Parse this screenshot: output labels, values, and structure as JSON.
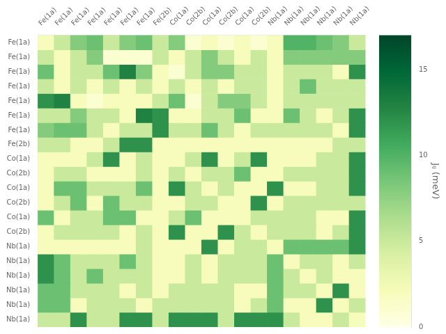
{
  "chart_data": {
    "type": "heatmap",
    "categories": [
      "Fe(1a)",
      "Fe(1a)",
      "Fe(1a)",
      "Fe(1a)",
      "Fe(1a)",
      "Fe(1a)",
      "Fe(1a)",
      "Fe(2b)",
      "Co(1a)",
      "Co(2b)",
      "Co(1a)",
      "Co(2b)",
      "Co(1a)",
      "Co(2b)",
      "Nb(1a)",
      "Nb(1a)",
      "Nb(1a)",
      "Nb(1a)",
      "Nb(1a)",
      "Nb(1a)"
    ],
    "y_categories": [
      "Fe(1a)",
      "Fe(1a)",
      "Fe(1a)",
      "Fe(1a)",
      "Fe(1a)",
      "Fe(1a)",
      "Fe(1a)",
      "Fe(2b)",
      "Co(1a)",
      "Co(2b)",
      "Co(1a)",
      "Co(2b)",
      "Co(1a)",
      "Co(2b)",
      "Nb(1a)",
      "Nb(1a)",
      "Nb(1a)",
      "Nb(1a)",
      "Nb(1a)",
      "Nb(1a)"
    ],
    "matrix": [
      [
        2,
        5,
        8,
        9,
        5,
        8,
        9,
        5,
        8,
        1,
        2,
        1,
        2,
        1,
        2,
        10,
        10,
        9,
        8,
        5
      ],
      [
        5,
        2,
        5,
        8,
        1,
        1,
        1,
        5,
        2,
        5,
        8,
        5,
        2,
        5,
        2,
        8,
        8,
        8,
        8,
        8
      ],
      [
        9,
        2,
        5,
        5,
        9,
        13,
        8,
        2,
        1,
        5,
        8,
        8,
        5,
        5,
        2,
        5,
        5,
        5,
        2,
        12
      ],
      [
        5,
        2,
        5,
        2,
        5,
        2,
        5,
        2,
        5,
        2,
        5,
        2,
        5,
        5,
        2,
        5,
        9,
        5,
        5,
        5
      ],
      [
        12,
        13,
        2,
        1,
        2,
        2,
        2,
        5,
        9,
        1,
        5,
        8,
        8,
        5,
        2,
        5,
        5,
        5,
        5,
        5
      ],
      [
        5,
        5,
        8,
        5,
        5,
        2,
        13,
        12,
        2,
        2,
        5,
        5,
        9,
        2,
        2,
        9,
        5,
        2,
        5,
        12
      ],
      [
        8,
        9,
        9,
        5,
        2,
        5,
        5,
        12,
        5,
        5,
        9,
        5,
        2,
        5,
        5,
        5,
        5,
        5,
        2,
        12
      ],
      [
        5,
        5,
        2,
        2,
        5,
        12,
        12,
        2,
        2,
        2,
        2,
        2,
        2,
        2,
        2,
        2,
        2,
        2,
        5,
        5
      ],
      [
        2,
        2,
        2,
        5,
        12,
        2,
        5,
        2,
        2,
        5,
        12,
        2,
        5,
        12,
        2,
        2,
        2,
        5,
        5,
        12
      ],
      [
        2,
        5,
        5,
        2,
        2,
        2,
        5,
        2,
        5,
        2,
        5,
        5,
        9,
        2,
        2,
        5,
        5,
        5,
        5,
        12
      ],
      [
        2,
        9,
        9,
        5,
        5,
        5,
        9,
        2,
        12,
        5,
        2,
        5,
        2,
        2,
        12,
        2,
        2,
        5,
        5,
        12
      ],
      [
        2,
        5,
        9,
        2,
        9,
        5,
        5,
        2,
        2,
        5,
        5,
        2,
        2,
        12,
        2,
        5,
        5,
        5,
        5,
        5
      ],
      [
        9,
        2,
        5,
        5,
        9,
        9,
        2,
        2,
        5,
        9,
        2,
        2,
        2,
        5,
        5,
        5,
        5,
        2,
        2,
        12
      ],
      [
        2,
        5,
        5,
        5,
        5,
        2,
        5,
        2,
        12,
        2,
        2,
        12,
        5,
        2,
        5,
        5,
        5,
        2,
        5,
        12
      ],
      [
        2,
        2,
        2,
        2,
        2,
        2,
        5,
        2,
        2,
        2,
        12,
        2,
        5,
        5,
        2,
        9,
        9,
        9,
        9,
        12
      ],
      [
        12,
        9,
        5,
        5,
        5,
        9,
        5,
        2,
        2,
        5,
        2,
        5,
        5,
        5,
        9,
        2,
        5,
        5,
        2,
        5
      ],
      [
        12,
        9,
        5,
        9,
        5,
        5,
        5,
        2,
        2,
        5,
        2,
        5,
        5,
        5,
        9,
        5,
        2,
        5,
        2,
        2
      ],
      [
        9,
        9,
        5,
        5,
        5,
        2,
        5,
        2,
        5,
        5,
        5,
        5,
        2,
        2,
        9,
        5,
        5,
        2,
        12,
        2
      ],
      [
        9,
        9,
        2,
        5,
        5,
        5,
        2,
        5,
        5,
        5,
        5,
        5,
        2,
        5,
        9,
        2,
        2,
        12,
        2,
        5
      ],
      [
        5,
        5,
        12,
        5,
        5,
        12,
        12,
        5,
        12,
        12,
        12,
        5,
        12,
        12,
        12,
        5,
        2,
        2,
        5,
        2
      ]
    ],
    "cbar_lim": [
      0,
      17
    ],
    "cbar_ticks": [
      0,
      5,
      10,
      15
    ],
    "cbar_label": "Jᵢⱼ (meV)",
    "grid": false
  }
}
